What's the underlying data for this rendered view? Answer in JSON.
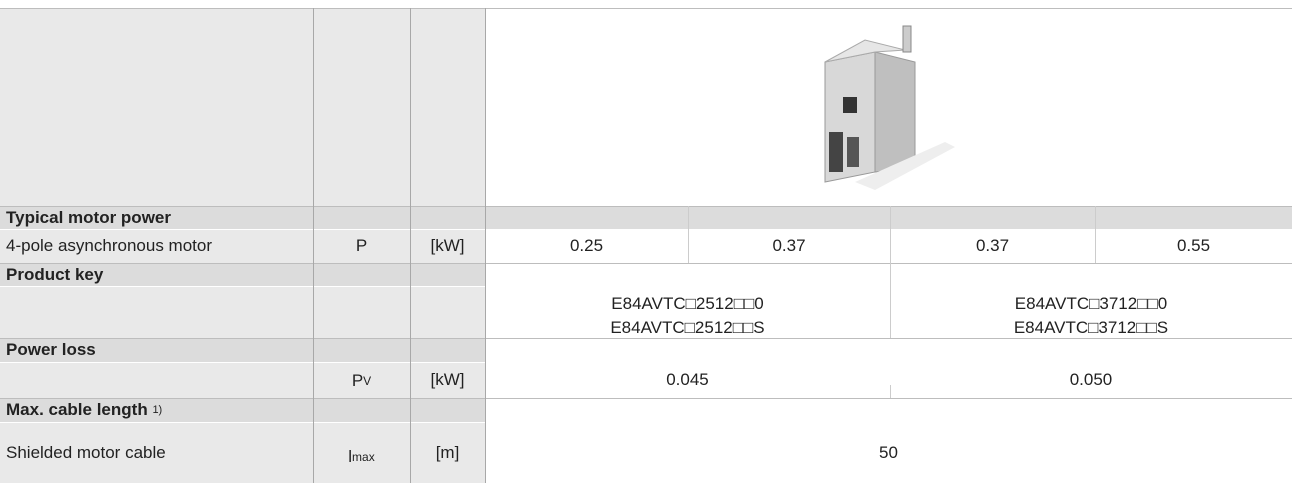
{
  "motor_power": {
    "heading": "Typical motor power",
    "label": "4-pole asynchronous motor",
    "symbol": "P",
    "unit": "[kW]",
    "values": [
      "0.25",
      "0.37",
      "0.37",
      "0.55"
    ]
  },
  "product_key": {
    "heading": "Product key",
    "values": [
      [
        "E84AVTC□2512□□0",
        "E84AVTC□2512□□S"
      ],
      [
        "E84AVTC□3712□□0",
        "E84AVTC□3712□□S"
      ]
    ]
  },
  "power_loss": {
    "heading": "Power loss",
    "symbol": {
      "base": "P",
      "sub": "V"
    },
    "unit": "[kW]",
    "values": [
      "0.045",
      "0.050"
    ]
  },
  "cable_length": {
    "heading": "Max. cable length",
    "footnote": "1)",
    "label": "Shielded motor cable",
    "symbol": {
      "base": "l",
      "sub": "max"
    },
    "unit": "[m]",
    "value": "50"
  }
}
